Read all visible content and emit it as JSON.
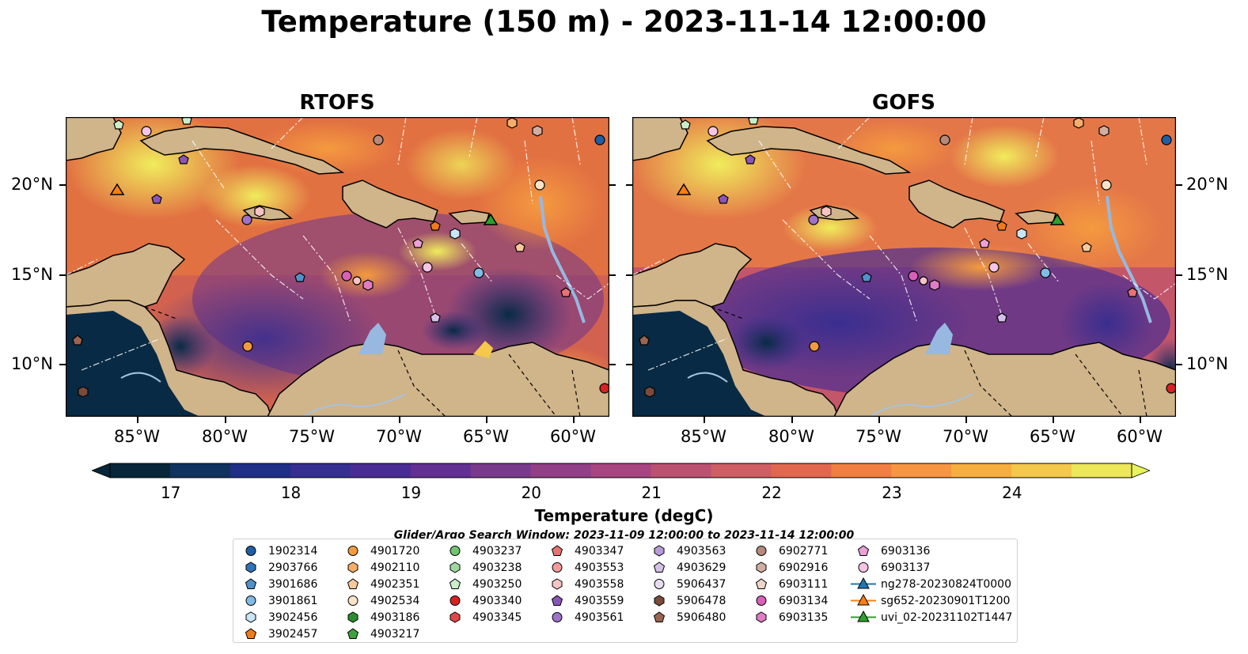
{
  "title": "Temperature (150 m) - 2023-11-14 12:00:00",
  "panels": [
    {
      "title": "RTOFS"
    },
    {
      "title": "GOFS"
    }
  ],
  "axes": {
    "x_ticks": [
      "85°W",
      "80°W",
      "75°W",
      "70°W",
      "65°W",
      "60°W"
    ],
    "y_ticks": [
      "20°N",
      "15°N",
      "10°N"
    ]
  },
  "colorbar": {
    "ticks": [
      "17",
      "18",
      "19",
      "20",
      "21",
      "22",
      "23",
      "24"
    ],
    "label": "Temperature (degC)",
    "colors": [
      "#08263a",
      "#10325e",
      "#1f2f86",
      "#342f90",
      "#4a2d94",
      "#622f92",
      "#7a3a8c",
      "#913f86",
      "#a74580",
      "#bb5171",
      "#cf5e64",
      "#e1684f",
      "#f07f41",
      "#f69642",
      "#f7ae41",
      "#f3c84b",
      "#ede75a"
    ]
  },
  "search_window": "Glider/Argo Search Window: 2023-11-09 12:00:00 to 2023-11-14 12:00:00",
  "legend": {
    "columns": [
      [
        {
          "id": "1902314",
          "marker": "circle",
          "color": "#1f5fa5"
        },
        {
          "id": "2903766",
          "marker": "hexagon",
          "color": "#2f72b5"
        },
        {
          "id": "3901686",
          "marker": "pentagon",
          "color": "#4f92cc"
        },
        {
          "id": "3901861",
          "marker": "circle",
          "color": "#80bce6"
        },
        {
          "id": "3902456",
          "marker": "hexagon",
          "color": "#c8e6f5"
        },
        {
          "id": "3902457",
          "marker": "pentagon",
          "color": "#f07b1a"
        }
      ],
      [
        {
          "id": "4901720",
          "marker": "circle",
          "color": "#f39a3e"
        },
        {
          "id": "4902110",
          "marker": "hexagon",
          "color": "#f5ad6a"
        },
        {
          "id": "4902351",
          "marker": "pentagon",
          "color": "#f8c99a"
        },
        {
          "id": "4902534",
          "marker": "circle",
          "color": "#fbe3c7"
        },
        {
          "id": "4903186",
          "marker": "hexagon",
          "color": "#2e8b2e"
        },
        {
          "id": "4903217",
          "marker": "pentagon",
          "color": "#3fa03f"
        }
      ],
      [
        {
          "id": "4903237",
          "marker": "circle",
          "color": "#6fc46f"
        },
        {
          "id": "4903238",
          "marker": "hexagon",
          "color": "#9fd89f"
        },
        {
          "id": "4903250",
          "marker": "pentagon",
          "color": "#c9eec9"
        },
        {
          "id": "4903340",
          "marker": "circle",
          "color": "#d62222"
        },
        {
          "id": "4903345",
          "marker": "hexagon",
          "color": "#e04848"
        }
      ],
      [
        {
          "id": "4903347",
          "marker": "pentagon",
          "color": "#e87272"
        },
        {
          "id": "4903553",
          "marker": "circle",
          "color": "#f29a9a"
        },
        {
          "id": "4903558",
          "marker": "hexagon",
          "color": "#f7c3c3"
        },
        {
          "id": "4903559",
          "marker": "pentagon",
          "color": "#8a55b8"
        },
        {
          "id": "4903561",
          "marker": "circle",
          "color": "#9d72c8"
        }
      ],
      [
        {
          "id": "4903563",
          "marker": "hexagon",
          "color": "#b89ad8"
        },
        {
          "id": "4903629",
          "marker": "pentagon",
          "color": "#d4c0e8"
        },
        {
          "id": "5906437",
          "marker": "circle",
          "color": "#e8dcf2"
        },
        {
          "id": "5906478",
          "marker": "hexagon",
          "color": "#7a4a3a"
        },
        {
          "id": "5906480",
          "marker": "pentagon",
          "color": "#9a6450"
        }
      ],
      [
        {
          "id": "6902771",
          "marker": "circle",
          "color": "#b58a7a"
        },
        {
          "id": "6902916",
          "marker": "hexagon",
          "color": "#d1aea0"
        },
        {
          "id": "6903111",
          "marker": "pentagon",
          "color": "#ecd5c8"
        },
        {
          "id": "6903134",
          "marker": "circle",
          "color": "#d860b8"
        },
        {
          "id": "6903135",
          "marker": "hexagon",
          "color": "#e07cc6"
        }
      ],
      [
        {
          "id": "6903136",
          "marker": "pentagon",
          "color": "#eca0d6"
        },
        {
          "id": "6903137",
          "marker": "circle",
          "color": "#f6c4e6"
        },
        {
          "id": "ng278-20230824T0000",
          "marker": "triangle-line",
          "color": "#1f77b4"
        },
        {
          "id": "sg652-20230901T1200",
          "marker": "triangle-line",
          "color": "#ff7f0e"
        },
        {
          "id": "uvi_02-20231102T1447",
          "marker": "triangle-line",
          "color": "#2ca02c"
        }
      ]
    ]
  }
}
